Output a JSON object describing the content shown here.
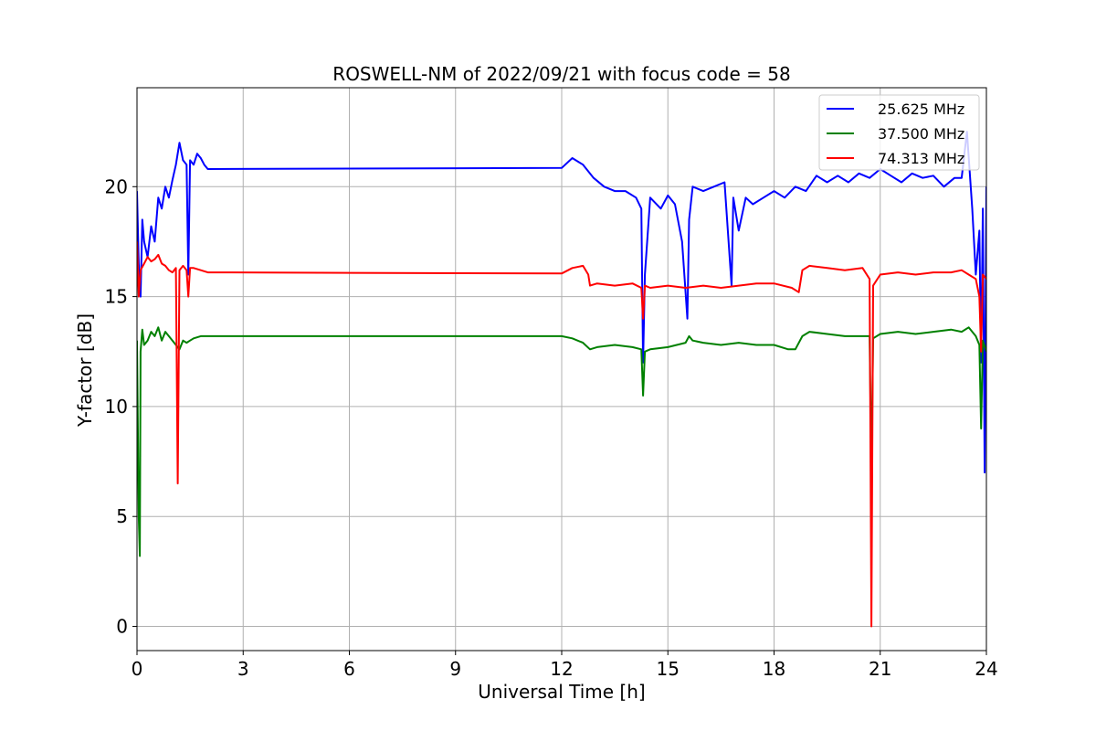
{
  "chart_data": {
    "type": "line",
    "title": "ROSWELL-NM of 2022/09/21 with focus code = 58",
    "xlabel": "Universal Time [h]",
    "ylabel": "Y-factor [dB]",
    "xlim": [
      0,
      24
    ],
    "ylim": [
      -1.1,
      24.5
    ],
    "xticks": [
      0,
      3,
      6,
      9,
      12,
      15,
      18,
      21,
      24
    ],
    "xtick_labels": [
      "0",
      "3",
      "6",
      "9",
      "12",
      "15",
      "18",
      "21",
      "24"
    ],
    "yticks": [
      0,
      5,
      10,
      15,
      20
    ],
    "ytick_labels": [
      "0",
      "5",
      "10",
      "15",
      "20"
    ],
    "grid": true,
    "legend_position": "top-right",
    "series": [
      {
        "name": "25.625 MHz",
        "color": "#0000ff",
        "x": [
          0.0,
          0.05,
          0.1,
          0.15,
          0.2,
          0.3,
          0.4,
          0.5,
          0.6,
          0.7,
          0.8,
          0.9,
          1.0,
          1.1,
          1.2,
          1.3,
          1.4,
          1.45,
          1.5,
          1.6,
          1.7,
          1.8,
          1.9,
          2.0,
          12.0,
          12.3,
          12.6,
          12.9,
          13.2,
          13.5,
          13.8,
          14.1,
          14.25,
          14.3,
          14.35,
          14.5,
          14.8,
          15.0,
          15.2,
          15.4,
          15.55,
          15.6,
          15.7,
          16.0,
          16.3,
          16.6,
          16.8,
          16.85,
          17.0,
          17.2,
          17.4,
          17.7,
          18.0,
          18.3,
          18.6,
          18.9,
          19.2,
          19.5,
          19.8,
          20.1,
          20.4,
          20.7,
          21.0,
          21.3,
          21.6,
          21.9,
          22.2,
          22.5,
          22.8,
          23.1,
          23.3,
          23.45,
          23.6,
          23.7,
          23.8,
          23.85,
          23.9,
          23.95,
          24.0
        ],
        "y": [
          19.8,
          16.5,
          15.0,
          18.5,
          17.5,
          16.8,
          18.2,
          17.5,
          19.5,
          19.0,
          20.0,
          19.5,
          20.3,
          21.0,
          22.0,
          21.2,
          21.0,
          16.0,
          21.2,
          21.0,
          21.5,
          21.3,
          21.0,
          20.8,
          20.85,
          21.3,
          21.0,
          20.4,
          20.0,
          19.8,
          19.8,
          19.5,
          19.0,
          12.0,
          16.0,
          19.5,
          19.0,
          19.6,
          19.2,
          17.5,
          14.0,
          18.5,
          20.0,
          19.8,
          20.0,
          20.2,
          15.5,
          19.5,
          18.0,
          19.5,
          19.2,
          19.5,
          19.8,
          19.5,
          20.0,
          19.8,
          20.5,
          20.2,
          20.5,
          20.2,
          20.6,
          20.4,
          20.8,
          20.5,
          20.2,
          20.6,
          20.4,
          20.5,
          20.0,
          20.4,
          20.4,
          22.5,
          19.0,
          16.0,
          18.0,
          12.0,
          19.0,
          7.0,
          20.0
        ]
      },
      {
        "name": "37.500 MHz",
        "color": "#008000",
        "x": [
          0.0,
          0.05,
          0.08,
          0.1,
          0.15,
          0.2,
          0.3,
          0.4,
          0.5,
          0.6,
          0.7,
          0.8,
          0.9,
          1.0,
          1.1,
          1.2,
          1.3,
          1.4,
          1.5,
          1.6,
          1.8,
          2.0,
          12.0,
          12.3,
          12.6,
          12.8,
          13.0,
          13.5,
          14.0,
          14.25,
          14.3,
          14.35,
          14.5,
          15.0,
          15.5,
          15.6,
          15.7,
          16.0,
          16.5,
          17.0,
          17.5,
          18.0,
          18.4,
          18.6,
          18.8,
          19.0,
          19.5,
          20.0,
          20.5,
          20.7,
          20.75,
          20.8,
          21.0,
          21.5,
          22.0,
          22.5,
          23.0,
          23.3,
          23.5,
          23.7,
          23.8,
          23.85,
          23.9,
          24.0
        ],
        "y": [
          13.0,
          5.0,
          3.2,
          12.5,
          13.5,
          12.8,
          13.0,
          13.4,
          13.2,
          13.6,
          13.0,
          13.4,
          13.2,
          13.0,
          12.8,
          12.6,
          13.0,
          12.9,
          13.0,
          13.1,
          13.2,
          13.2,
          13.2,
          13.1,
          12.9,
          12.6,
          12.7,
          12.8,
          12.7,
          12.6,
          10.5,
          12.5,
          12.6,
          12.7,
          12.9,
          13.2,
          13.0,
          12.9,
          12.8,
          12.9,
          12.8,
          12.8,
          12.6,
          12.6,
          13.2,
          13.4,
          13.3,
          13.2,
          13.2,
          13.2,
          7.0,
          13.1,
          13.3,
          13.4,
          13.3,
          13.4,
          13.5,
          13.4,
          13.6,
          13.2,
          12.8,
          9.0,
          13.0,
          12.5
        ]
      },
      {
        "name": "74.313 MHz",
        "color": "#ff0000",
        "x": [
          0.0,
          0.05,
          0.1,
          0.2,
          0.3,
          0.4,
          0.5,
          0.6,
          0.7,
          0.8,
          0.9,
          1.0,
          1.1,
          1.15,
          1.2,
          1.3,
          1.4,
          1.45,
          1.5,
          1.6,
          1.8,
          2.0,
          12.0,
          12.3,
          12.6,
          12.75,
          12.8,
          13.0,
          13.5,
          14.0,
          14.25,
          14.3,
          14.35,
          14.5,
          15.0,
          15.5,
          16.0,
          16.5,
          17.0,
          17.5,
          18.0,
          18.5,
          18.7,
          18.8,
          19.0,
          19.5,
          20.0,
          20.5,
          20.7,
          20.75,
          20.8,
          21.0,
          21.5,
          22.0,
          22.5,
          23.0,
          23.3,
          23.5,
          23.7,
          23.8,
          23.85,
          23.9,
          24.0
        ],
        "y": [
          17.5,
          15.0,
          16.2,
          16.5,
          16.8,
          16.6,
          16.7,
          16.9,
          16.5,
          16.4,
          16.2,
          16.1,
          16.3,
          6.5,
          16.2,
          16.4,
          16.2,
          15.0,
          16.3,
          16.3,
          16.2,
          16.1,
          16.05,
          16.3,
          16.4,
          16.0,
          15.5,
          15.6,
          15.5,
          15.6,
          15.4,
          14.0,
          15.5,
          15.4,
          15.5,
          15.4,
          15.5,
          15.4,
          15.5,
          15.6,
          15.6,
          15.4,
          15.2,
          16.2,
          16.4,
          16.3,
          16.2,
          16.3,
          15.8,
          0.0,
          15.5,
          16.0,
          16.1,
          16.0,
          16.1,
          16.1,
          16.2,
          16.0,
          15.8,
          15.0,
          12.5,
          16.0,
          15.8
        ]
      }
    ]
  }
}
